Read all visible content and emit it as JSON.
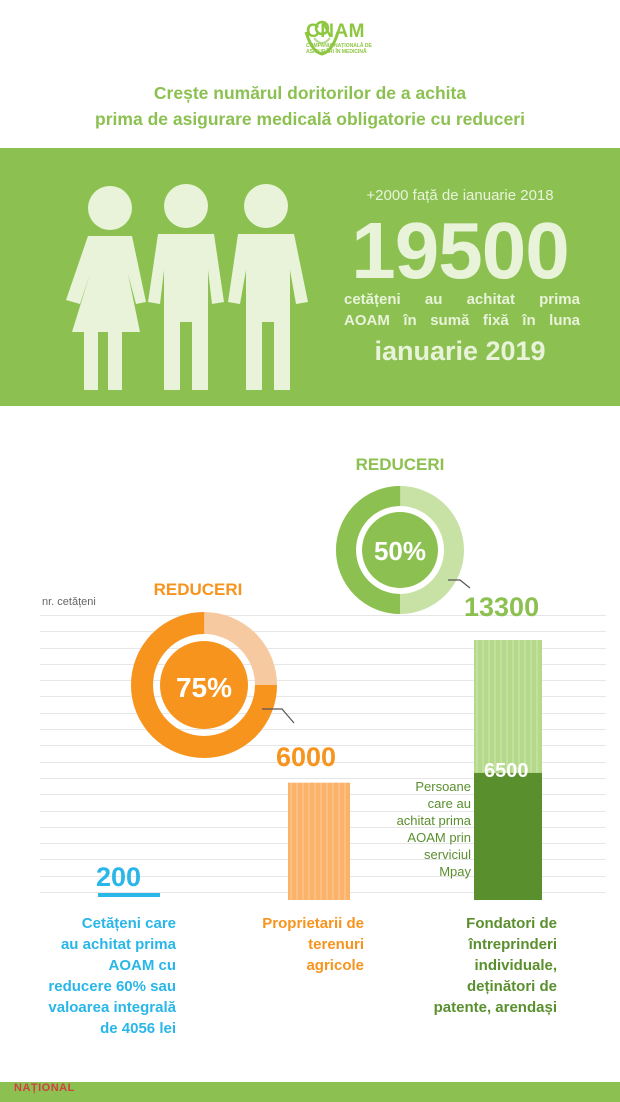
{
  "header": {
    "logo_text": "CNAM",
    "logo_sub": "COMPANIA NAȚIONALĂ DE ASIGURĂRI ÎN MEDICINĂ",
    "title_line1": "Crește numărul doritorilor de a achita",
    "title_line2": "prima de asigurare medicală obligatorie cu reduceri"
  },
  "banner": {
    "delta": "+2000 față de ianuarie 2018",
    "total": "19500",
    "desc_line1": "cetățeni au achitat prima",
    "desc_line2": "AOAM în sumă fixă în luna",
    "month": "ianuarie 2019"
  },
  "chart": {
    "y_label": "nr. cetățeni",
    "discount_a_label": "REDUCERI",
    "discount_a_value": "75%",
    "discount_b_label": "REDUCERI",
    "discount_b_value": "50%"
  },
  "chart_data": {
    "type": "bar",
    "ylabel": "nr. cetățeni",
    "categories": [
      "Cetățeni care au achitat prima AOAM cu reducere 60% sau valoarea integrală de 4056 lei",
      "Proprietarii de terenuri agricole",
      "Fondatori de întreprinderi individuale, deținători de patente, arendași"
    ],
    "values": [
      200,
      6000,
      13300
    ],
    "value_labels": [
      "200",
      "6000",
      "13300"
    ],
    "sub_value": 6500,
    "sub_value_label": "6500",
    "sub_value_note": "Persoane care au achitat prima AOAM prin serviciul Mpay",
    "colors": [
      "#29b6e8",
      "#f7941d",
      "#8cc152"
    ]
  },
  "captions": {
    "col1": [
      "Cetățeni care",
      "au achitat prima",
      "AOAM  cu",
      "reducere 60% sau",
      "valoarea integrală",
      "de 4056 lei"
    ],
    "col2": [
      "Proprietarii de",
      "terenuri",
      "agricole"
    ],
    "col3": [
      "Fondatori de",
      "întreprinderi",
      "individuale,",
      "deținători de",
      "patente, arendași"
    ],
    "mpay": [
      "Persoane",
      "care au",
      "achitat prima",
      "AOAM prin",
      "serviciul",
      "Mpay"
    ]
  },
  "footer": {
    "watermark": "NAȚIONAL"
  }
}
